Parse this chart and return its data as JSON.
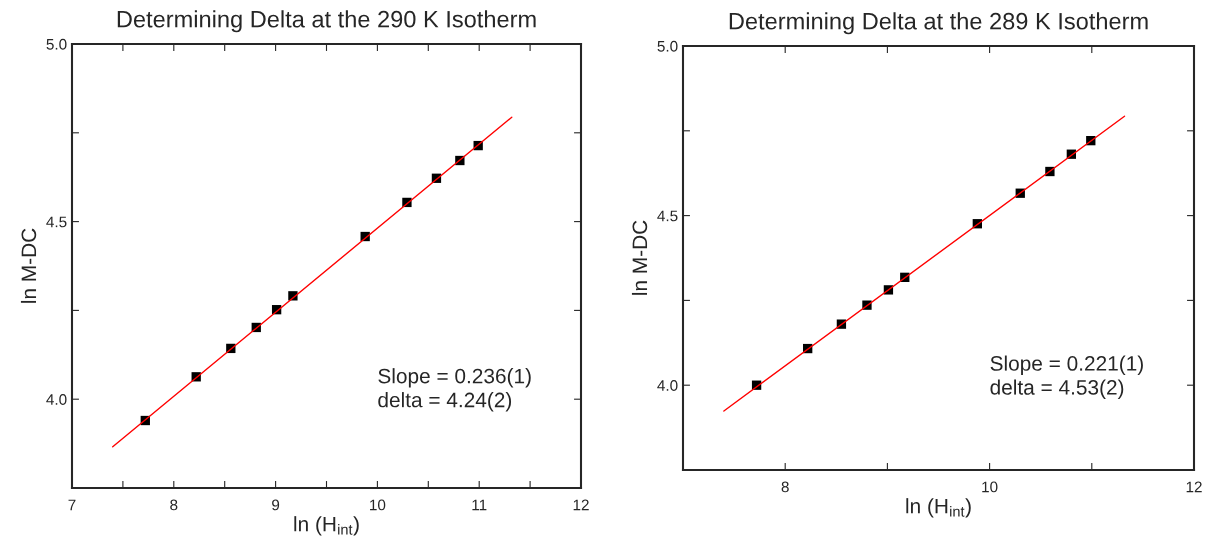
{
  "chart_data": [
    {
      "type": "scatter",
      "title": "Determining Delta at the 290 K Isotherm",
      "xlabel": "ln (H$_{int}$)",
      "ylabel": "ln M-DC",
      "xlim": [
        7,
        12
      ],
      "xticks": [
        7,
        {
          "value": 7.5,
          "label": null
        },
        8,
        {
          "value": 8.5,
          "label": null
        },
        9,
        {
          "value": 9.5,
          "label": null
        },
        10,
        {
          "value": 10.5,
          "label": null
        },
        11,
        {
          "value": 11.5,
          "label": null
        },
        12
      ],
      "ylim": [
        3.75,
        5.0
      ],
      "yticks": [
        {
          "value": 4.0,
          "label": "4.0"
        },
        {
          "value": 4.25,
          "label": null
        },
        {
          "value": 4.5,
          "label": "4.5"
        },
        {
          "value": 4.75,
          "label": null
        },
        {
          "value": 5.0,
          "label": "5.0"
        }
      ],
      "grid": false,
      "legend": false,
      "series": [
        {
          "marker": "square",
          "color": "#000000",
          "x": [
            7.72,
            8.22,
            8.56,
            8.81,
            9.01,
            9.17,
            9.88,
            10.29,
            10.58,
            10.81,
            10.99
          ],
          "values": [
            3.94,
            4.063,
            4.143,
            4.202,
            4.252,
            4.291,
            4.458,
            4.554,
            4.622,
            4.672,
            4.714
          ]
        },
        {
          "type": "line",
          "marker": "none",
          "color": "#ff0000",
          "x": [
            7.4,
            11.32
          ],
          "values": [
            3.866,
            4.794
          ]
        }
      ],
      "annotations": [
        "Slope = 0.236(1)\ndelta = 4.24(2)"
      ]
    },
    {
      "type": "scatter",
      "title": "Determining Delta at the 289 K Isotherm",
      "xlabel": "ln (H$_{int}$)",
      "ylabel": "ln M-DC",
      "xlim": [
        7,
        12
      ],
      "xticks": [
        {
          "value": 7,
          "label": null
        },
        8,
        {
          "value": 9,
          "label": null
        },
        10,
        {
          "value": 11,
          "label": null
        },
        12
      ],
      "ylim": [
        3.75,
        5.0
      ],
      "yticks": [
        {
          "value": 4.0,
          "label": "4.0"
        },
        {
          "value": 4.25,
          "label": null
        },
        {
          "value": 4.5,
          "label": "4.5"
        },
        {
          "value": 4.75,
          "label": null
        },
        {
          "value": 5.0,
          "label": "5.0"
        }
      ],
      "grid": false,
      "legend": false,
      "series": [
        {
          "marker": "square",
          "color": "#000000",
          "x": [
            7.72,
            8.22,
            8.55,
            8.8,
            9.01,
            9.17,
            9.88,
            10.3,
            10.59,
            10.8,
            10.99
          ],
          "values": [
            4.0,
            4.108,
            4.18,
            4.236,
            4.281,
            4.318,
            4.476,
            4.566,
            4.63,
            4.681,
            4.721
          ]
        },
        {
          "type": "line",
          "marker": "none",
          "color": "#ff0000",
          "x": [
            7.4,
            11.32
          ],
          "values": [
            3.924,
            4.793
          ]
        }
      ],
      "annotations": [
        "Slope = 0.221(1)\ndelta = 4.53(2)"
      ]
    }
  ]
}
